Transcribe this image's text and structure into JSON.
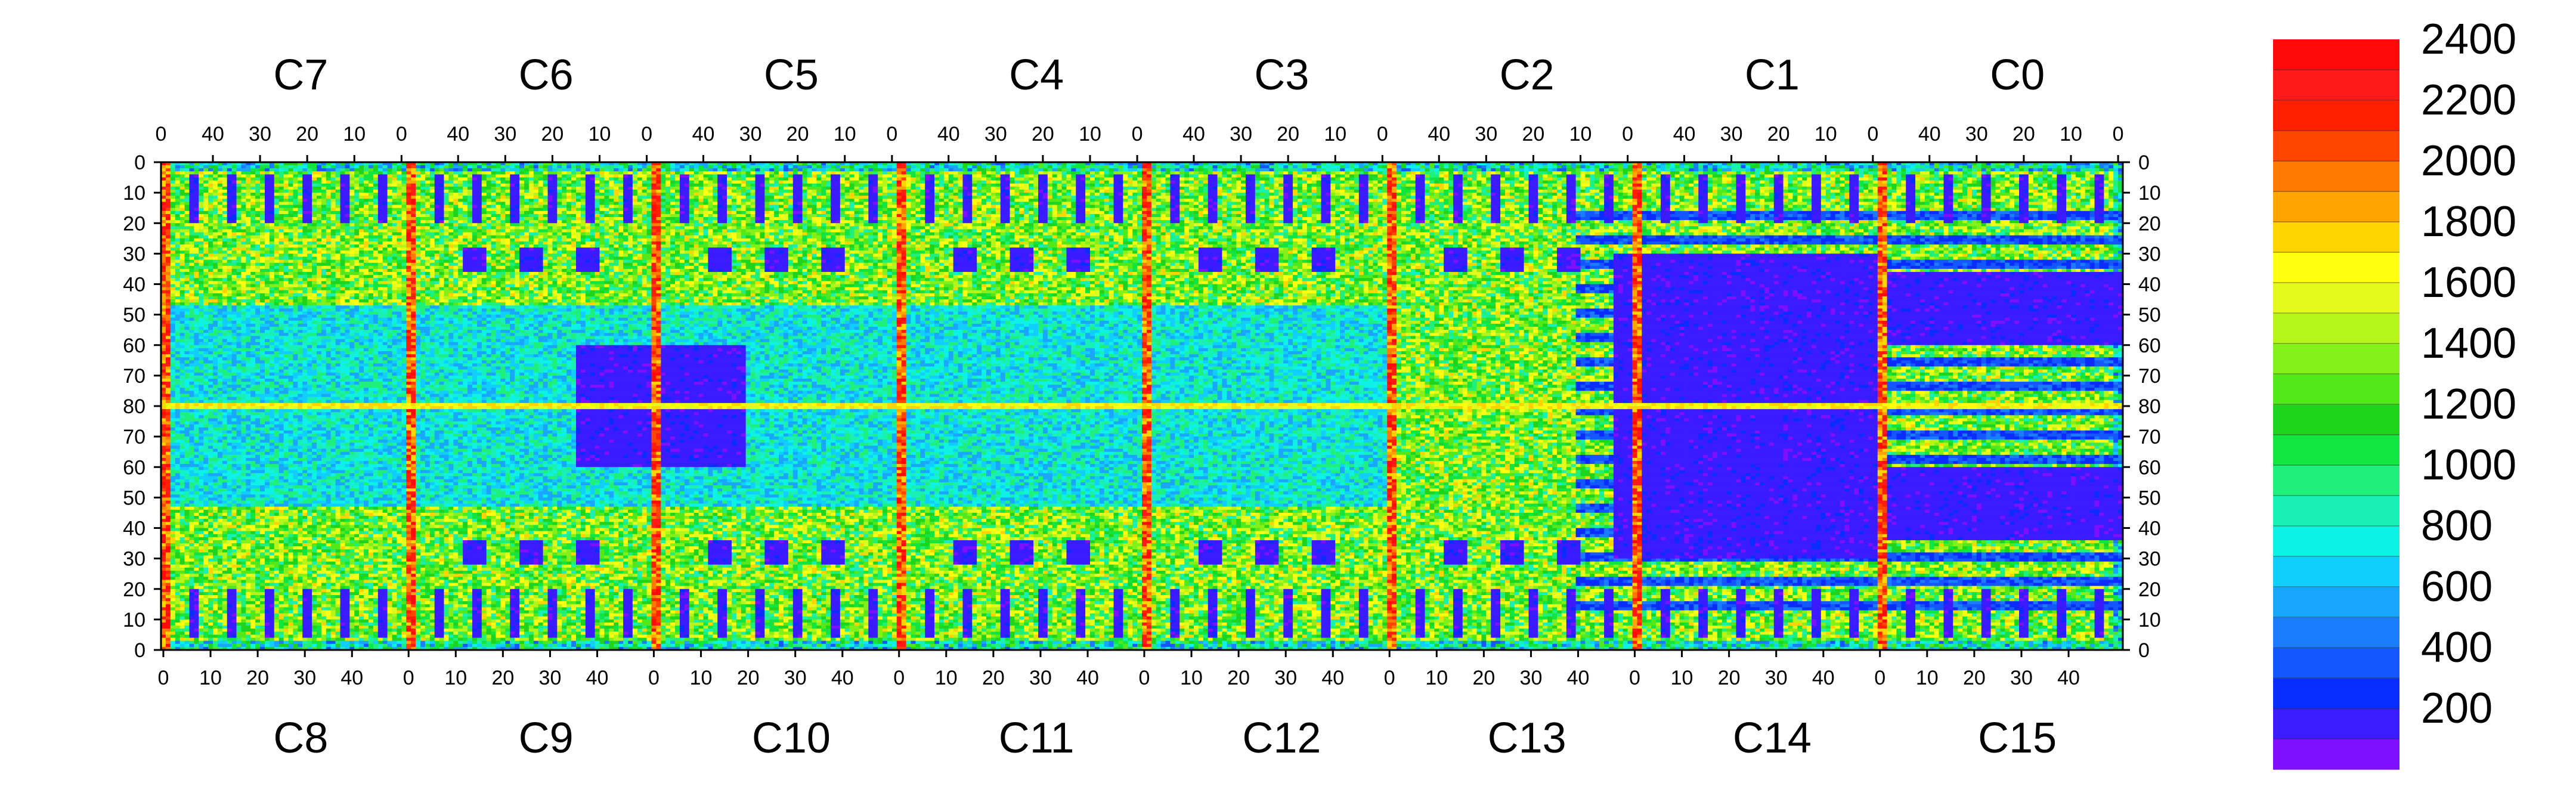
{
  "chart_data": {
    "type": "heatmap",
    "title": "",
    "top_row": {
      "chips": [
        "C7",
        "C6",
        "C5",
        "C4",
        "C3",
        "C2",
        "C1",
        "C0"
      ],
      "ticks": [
        "40",
        "30",
        "20",
        "10",
        "0"
      ],
      "ticks_lead": "0"
    },
    "bottom_row": {
      "chips": [
        "C8",
        "C9",
        "C10",
        "C11",
        "C12",
        "C13",
        "C14",
        "C15"
      ],
      "ticks": [
        "0",
        "10",
        "20",
        "30",
        "40"
      ]
    },
    "y_ticks": [
      "0",
      "10",
      "20",
      "30",
      "40",
      "50",
      "60",
      "70",
      "80",
      "70",
      "60",
      "50",
      "40",
      "30",
      "20",
      "10",
      "0"
    ],
    "columns_per_chip": 52,
    "rows_per_half": 80,
    "colorbar": {
      "min": 0,
      "max": 2400,
      "labels": [
        "2400",
        "2200",
        "2000",
        "1800",
        "1600",
        "1400",
        "1200",
        "1000",
        "800",
        "600",
        "400",
        "200"
      ],
      "label_values": [
        2400,
        2200,
        2000,
        1800,
        1600,
        1400,
        1200,
        1000,
        800,
        600,
        400,
        200
      ],
      "colors": [
        "#7f10ff",
        "#3b1bff",
        "#0a2dff",
        "#1456ff",
        "#1a7cff",
        "#18a6ff",
        "#10cfff",
        "#0ef2e6",
        "#19f0b4",
        "#1ff07c",
        "#10e540",
        "#1ed41c",
        "#52e81a",
        "#84f01a",
        "#b6f51a",
        "#e3fb1c",
        "#ffff10",
        "#ffd400",
        "#ffa500",
        "#ff7a00",
        "#ff4500",
        "#ff2000",
        "#ff1a1a",
        "#ff0a0a"
      ]
    },
    "regions": [
      {
        "label": "",
        "value": 1250
      },
      {
        "label": "",
        "value": 150
      }
    ]
  }
}
